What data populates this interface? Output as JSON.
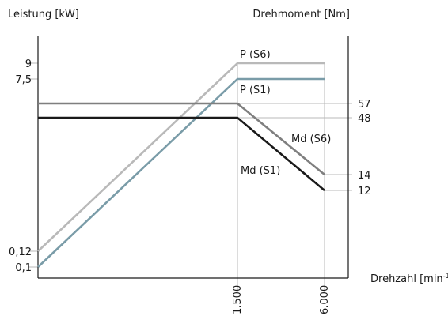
{
  "chart_data": {
    "type": "line",
    "y_left_label": "Leistung [kW]",
    "y_right_label": "Drehmoment [Nm]",
    "x_label": "Drehzahl [min",
    "x_label_sup": "-1",
    "x_label_close": "]",
    "x_ticks": [
      {
        "value": 1500,
        "label": "1.500"
      },
      {
        "value": 6000,
        "label": "6.000"
      }
    ],
    "y_left_ticks": [
      {
        "value": 9,
        "label": "9"
      },
      {
        "value": 7.5,
        "label": "7,5"
      },
      {
        "value": 0.12,
        "label": "0,12"
      },
      {
        "value": 0.1,
        "label": "0,1"
      }
    ],
    "y_right_ticks": [
      {
        "value": 57,
        "label": "57"
      },
      {
        "value": 48,
        "label": "48"
      },
      {
        "value": 14,
        "label": "14"
      },
      {
        "value": 12,
        "label": "12"
      }
    ],
    "series": [
      {
        "name": "P (S6)",
        "axis": "left",
        "color": "#b9b9b9",
        "points": [
          [
            0,
            0.12
          ],
          [
            1500,
            9
          ],
          [
            6000,
            9
          ]
        ]
      },
      {
        "name": "P (S1)",
        "axis": "left",
        "color": "#7a9ca8",
        "points": [
          [
            0,
            0.1
          ],
          [
            1500,
            7.5
          ],
          [
            6000,
            7.5
          ]
        ]
      },
      {
        "name": "Md (S6)",
        "axis": "right",
        "color": "#7f7f7f",
        "points": [
          [
            0,
            57
          ],
          [
            1500,
            57
          ],
          [
            6000,
            14
          ]
        ]
      },
      {
        "name": "Md (S1)",
        "axis": "right",
        "color": "#1a1a1a",
        "points": [
          [
            0,
            48
          ],
          [
            1500,
            48
          ],
          [
            6000,
            12
          ]
        ]
      }
    ]
  }
}
